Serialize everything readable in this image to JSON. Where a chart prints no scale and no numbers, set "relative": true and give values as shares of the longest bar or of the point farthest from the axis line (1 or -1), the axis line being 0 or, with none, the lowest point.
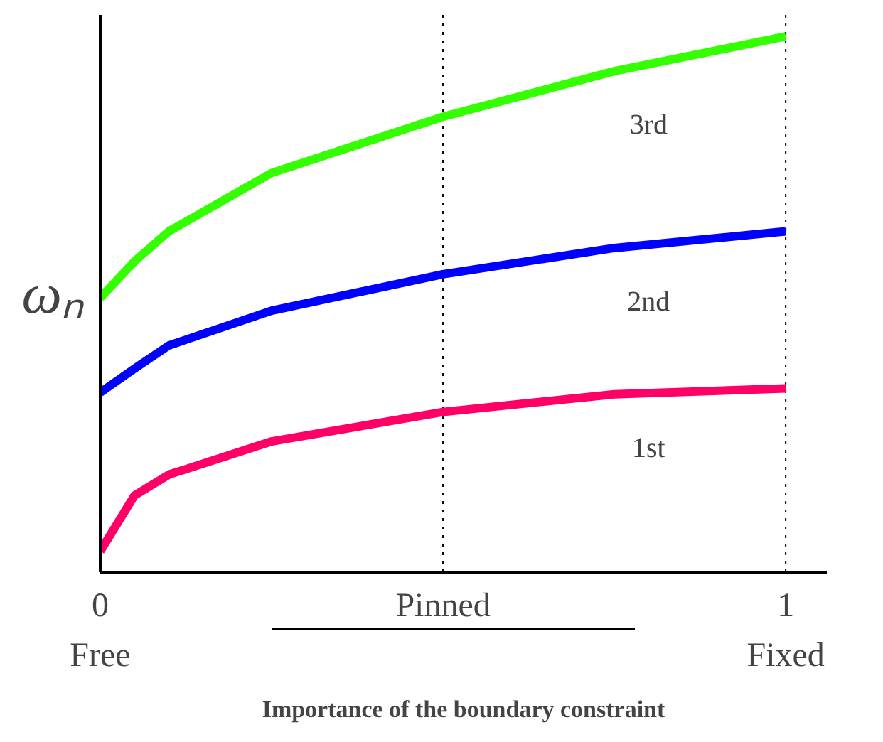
{
  "chart_data": {
    "type": "line",
    "relative": true,
    "xlabel": "Importance of the boundary constraint",
    "ylabel": "ωₙ",
    "x": [
      0,
      0.05,
      0.1,
      0.25,
      0.5,
      0.75,
      1
    ],
    "xlim": [
      0,
      1.06
    ],
    "xticks": [
      0,
      {
        "value": 0.5,
        "label": "Pinned"
      },
      1
    ],
    "series": [
      {
        "name": "1st",
        "color": "#ff0066",
        "values": [
          0.039,
          0.143,
          0.182,
          0.244,
          0.299,
          0.332,
          0.343
        ]
      },
      {
        "name": "2nd",
        "color": "#0000ff",
        "values": [
          0.335,
          0.38,
          0.423,
          0.488,
          0.556,
          0.605,
          0.636
        ]
      },
      {
        "name": "3rd",
        "color": "#33ff00",
        "values": [
          0.512,
          0.58,
          0.636,
          0.745,
          0.85,
          0.935,
          1
        ]
      }
    ],
    "ref_lines": [
      {
        "axis": "x",
        "value": 0.5,
        "line_style": "dotted",
        "color": "#000000"
      },
      {
        "axis": "x",
        "value": 1,
        "line_style": "dotted",
        "color": "#000000"
      }
    ],
    "annotations": [
      "Free",
      "Fixed"
    ],
    "grid": false,
    "line_style": "solid",
    "marker": "none"
  }
}
